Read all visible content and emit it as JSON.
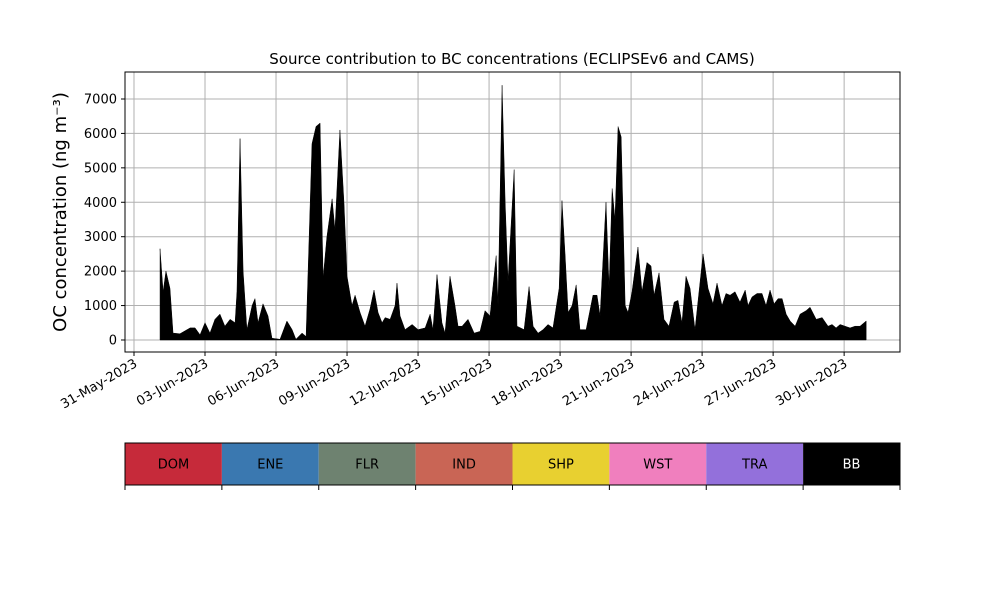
{
  "chart_data": {
    "type": "area",
    "title": "Source contribution to BC concentrations (ECLIPSEv6 and CAMS)",
    "y_label": "OC concentration (ng m⁻³)",
    "x": [
      1.1,
      1.23,
      1.35,
      1.52,
      1.65,
      1.94,
      2.37,
      2.58,
      2.79,
      3.0,
      3.21,
      3.42,
      3.63,
      3.84,
      4.06,
      4.27,
      4.35,
      4.48,
      4.61,
      4.77,
      4.99,
      5.11,
      5.24,
      5.45,
      5.66,
      5.83,
      6.17,
      6.46,
      6.68,
      6.84,
      7.1,
      7.27,
      7.52,
      7.69,
      7.86,
      7.99,
      8.15,
      8.37,
      8.49,
      8.7,
      8.87,
      9.0,
      9.21,
      9.34,
      9.55,
      9.76,
      9.97,
      10.14,
      10.31,
      10.48,
      10.61,
      10.82,
      11.03,
      11.11,
      11.24,
      11.45,
      11.75,
      12.0,
      12.3,
      12.51,
      12.63,
      12.8,
      13.01,
      13.14,
      13.35,
      13.56,
      13.69,
      13.86,
      14.11,
      14.37,
      14.62,
      14.83,
      15.04,
      15.3,
      15.38,
      15.55,
      15.68,
      15.8,
      16.06,
      16.18,
      16.48,
      16.69,
      16.86,
      17.07,
      17.28,
      17.49,
      17.7,
      17.96,
      18.08,
      18.21,
      18.34,
      18.51,
      18.68,
      18.84,
      19.1,
      19.39,
      19.56,
      19.69,
      19.94,
      20.07,
      20.2,
      20.32,
      20.45,
      20.58,
      20.75,
      20.87,
      21.04,
      21.29,
      21.46,
      21.67,
      21.84,
      21.97,
      22.18,
      22.39,
      22.6,
      22.82,
      22.98,
      23.15,
      23.32,
      23.49,
      23.7,
      24.04,
      24.25,
      24.46,
      24.63,
      24.84,
      25.01,
      25.18,
      25.39,
      25.6,
      25.82,
      25.94,
      26.11,
      26.32,
      26.53,
      26.7,
      26.87,
      27.04,
      27.21,
      27.38,
      27.55,
      27.72,
      27.93,
      28.14,
      28.39,
      28.56,
      28.82,
      29.07,
      29.32,
      29.49,
      29.66,
      29.83,
      30.04,
      30.25,
      30.46,
      30.67,
      30.93
    ],
    "series": [
      {
        "name": "BB",
        "color": "#000000",
        "values": [
          2650,
          1400,
          2000,
          1500,
          200,
          180,
          350,
          350,
          150,
          500,
          200,
          600,
          750,
          400,
          600,
          500,
          1400,
          5850,
          2000,
          300,
          1000,
          1200,
          500,
          1050,
          700,
          50,
          20,
          550,
          300,
          20,
          200,
          100,
          5700,
          6200,
          6300,
          1800,
          3000,
          4100,
          3200,
          6100,
          4000,
          1850,
          1000,
          1300,
          800,
          400,
          900,
          1450,
          800,
          500,
          650,
          600,
          1000,
          1650,
          700,
          300,
          450,
          300,
          350,
          750,
          300,
          1900,
          500,
          200,
          1850,
          1000,
          400,
          400,
          600,
          200,
          250,
          850,
          700,
          2450,
          1000,
          7400,
          4000,
          1700,
          4950,
          400,
          300,
          1550,
          400,
          200,
          300,
          450,
          350,
          1500,
          4050,
          2500,
          800,
          1000,
          1600,
          300,
          300,
          1300,
          1300,
          700,
          4000,
          1500,
          4400,
          3500,
          6200,
          5900,
          1000,
          800,
          1400,
          2700,
          1400,
          2250,
          2150,
          1300,
          1950,
          600,
          400,
          1100,
          1150,
          500,
          1850,
          1500,
          300,
          2500,
          1500,
          1050,
          1650,
          1000,
          1350,
          1300,
          1400,
          1100,
          1450,
          1000,
          1250,
          1350,
          1350,
          1000,
          1450,
          1050,
          1200,
          1200,
          750,
          550,
          400,
          750,
          850,
          950,
          600,
          650,
          400,
          450,
          350,
          450,
          400,
          350,
          400,
          400,
          550
        ]
      }
    ],
    "xlim": [
      -0.38,
      32.36
    ],
    "xticks": [
      {
        "value": 0,
        "label": "31-May-2023"
      },
      {
        "value": 3,
        "label": "03-Jun-2023"
      },
      {
        "value": 6,
        "label": "06-Jun-2023"
      },
      {
        "value": 9,
        "label": "09-Jun-2023"
      },
      {
        "value": 12,
        "label": "12-Jun-2023"
      },
      {
        "value": 15,
        "label": "15-Jun-2023"
      },
      {
        "value": 18,
        "label": "18-Jun-2023"
      },
      {
        "value": 21,
        "label": "21-Jun-2023"
      },
      {
        "value": 24,
        "label": "24-Jun-2023"
      },
      {
        "value": 27,
        "label": "27-Jun-2023"
      },
      {
        "value": 30,
        "label": "30-Jun-2023"
      }
    ],
    "ylim": [
      -349,
      7784
    ],
    "yticks": [
      0,
      1000,
      2000,
      3000,
      4000,
      5000,
      6000,
      7000
    ],
    "grid": true,
    "colorbar": {
      "labels": [
        "DOM",
        "ENE",
        "FLR",
        "IND",
        "SHP",
        "WST",
        "TRA",
        "BB"
      ],
      "colors": [
        "#c62a3a",
        "#3a78b0",
        "#6e8270",
        "#c96555",
        "#e8d030",
        "#f07fbe",
        "#9370db",
        "#000000"
      ]
    }
  }
}
